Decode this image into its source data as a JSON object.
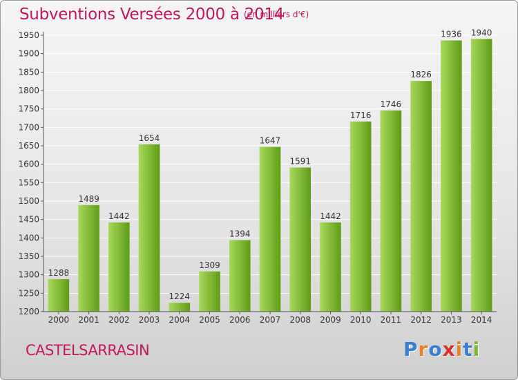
{
  "header": {
    "title": "Subventions Versées 2000 à 2014",
    "subtitle": "(en milliers d'€)"
  },
  "footer": {
    "city": "CASTELSARRASIN",
    "logo": [
      "P",
      "r",
      "o",
      "x",
      "i",
      "t",
      "i"
    ],
    "logo_colors": [
      "#3a7fd0",
      "#e8822a",
      "#3a7fd0",
      "#d8312c",
      "#e8822a",
      "#3a7fd0",
      "#7cb82f"
    ]
  },
  "colors": {
    "bar_light": "#a8d85a",
    "bar_dark": "#5e9d16",
    "grid": "#ffffff",
    "title": "#c2185b"
  },
  "chart_data": {
    "type": "bar",
    "title": "Subventions Versées 2000 à 2014",
    "subtitle": "(en milliers d'€)",
    "xlabel": "",
    "ylabel": "",
    "categories": [
      "2000",
      "2001",
      "2002",
      "2003",
      "2004",
      "2005",
      "2006",
      "2007",
      "2008",
      "2009",
      "2010",
      "2011",
      "2012",
      "2013",
      "2014"
    ],
    "values": [
      1288,
      1489,
      1442,
      1654,
      1224,
      1309,
      1394,
      1647,
      1591,
      1442,
      1716,
      1746,
      1826,
      1936,
      1940
    ],
    "ylim": [
      1200,
      1950
    ],
    "yticks": [
      1200,
      1250,
      1300,
      1350,
      1400,
      1450,
      1500,
      1550,
      1600,
      1650,
      1700,
      1750,
      1800,
      1850,
      1900,
      1950
    ],
    "grid": true,
    "data_labels": true
  }
}
